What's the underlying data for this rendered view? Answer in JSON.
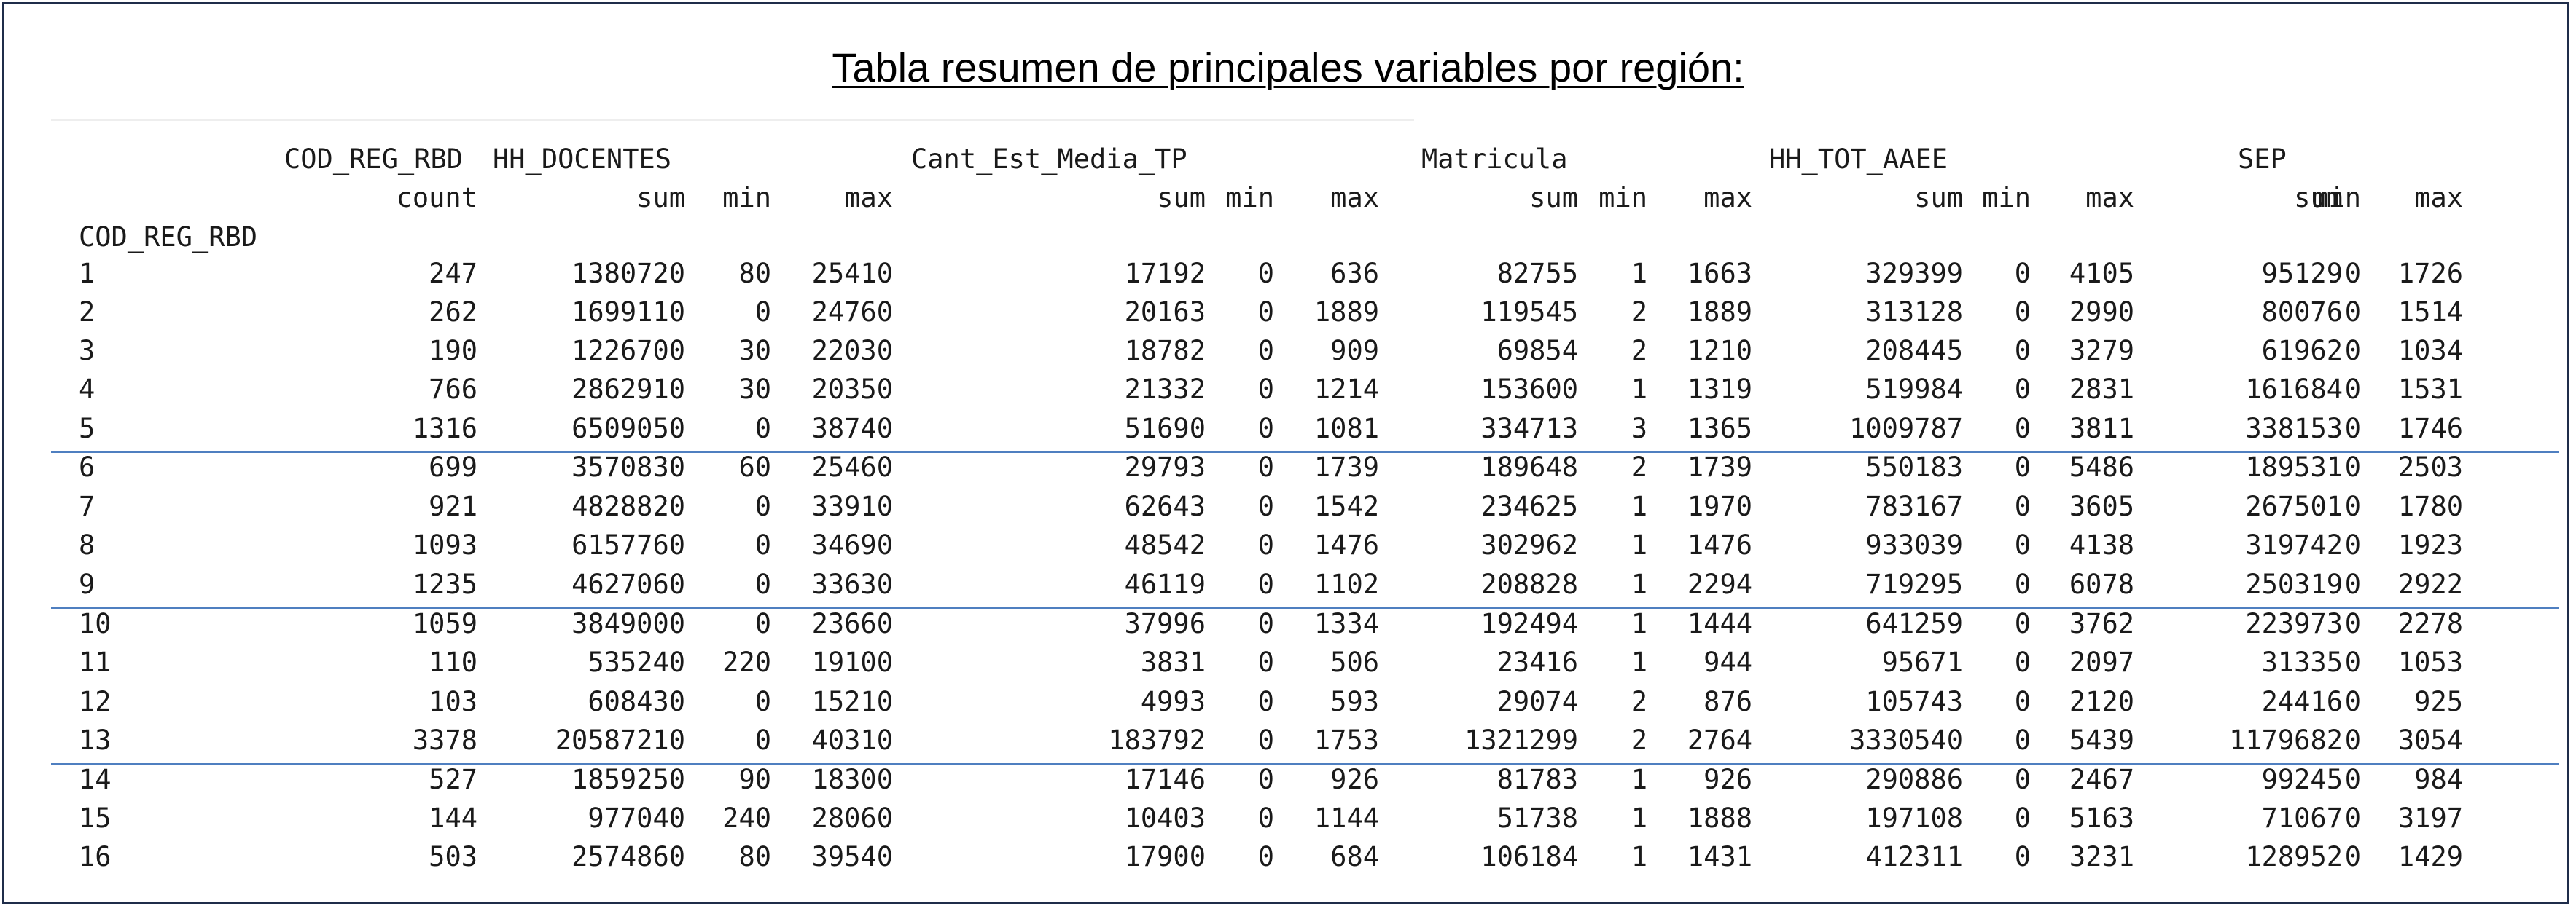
{
  "title": "Tabla resumen de principales variables por región:",
  "header_groups": [
    "COD_REG_RBD",
    "HH_DOCENTES",
    "Cant_Est_Media_TP",
    "Matricula",
    "HH_TOT_AAEE",
    "SEP"
  ],
  "sub_headers": [
    "count",
    "sum",
    "min",
    "max",
    "sum",
    "min",
    "max",
    "sum",
    "min",
    "max",
    "sum",
    "min",
    "max",
    "sum",
    "min",
    "max"
  ],
  "index_label": "COD_REG_RBD",
  "rows": [
    [
      "1",
      "247",
      "1380720",
      "80",
      "25410",
      "17192",
      "0",
      "636",
      "82755",
      "1",
      "1663",
      "329399",
      "0",
      "4105",
      "95129",
      "0",
      "1726"
    ],
    [
      "2",
      "262",
      "1699110",
      "0",
      "24760",
      "20163",
      "0",
      "1889",
      "119545",
      "2",
      "1889",
      "313128",
      "0",
      "2990",
      "80076",
      "0",
      "1514"
    ],
    [
      "3",
      "190",
      "1226700",
      "30",
      "22030",
      "18782",
      "0",
      "909",
      "69854",
      "2",
      "1210",
      "208445",
      "0",
      "3279",
      "61962",
      "0",
      "1034"
    ],
    [
      "4",
      "766",
      "2862910",
      "30",
      "20350",
      "21332",
      "0",
      "1214",
      "153600",
      "1",
      "1319",
      "519984",
      "0",
      "2831",
      "161684",
      "0",
      "1531"
    ],
    [
      "5",
      "1316",
      "6509050",
      "0",
      "38740",
      "51690",
      "0",
      "1081",
      "334713",
      "3",
      "1365",
      "1009787",
      "0",
      "3811",
      "338153",
      "0",
      "1746"
    ],
    [
      "6",
      "699",
      "3570830",
      "60",
      "25460",
      "29793",
      "0",
      "1739",
      "189648",
      "2",
      "1739",
      "550183",
      "0",
      "5486",
      "189531",
      "0",
      "2503"
    ],
    [
      "7",
      "921",
      "4828820",
      "0",
      "33910",
      "62643",
      "0",
      "1542",
      "234625",
      "1",
      "1970",
      "783167",
      "0",
      "3605",
      "267501",
      "0",
      "1780"
    ],
    [
      "8",
      "1093",
      "6157760",
      "0",
      "34690",
      "48542",
      "0",
      "1476",
      "302962",
      "1",
      "1476",
      "933039",
      "0",
      "4138",
      "319742",
      "0",
      "1923"
    ],
    [
      "9",
      "1235",
      "4627060",
      "0",
      "33630",
      "46119",
      "0",
      "1102",
      "208828",
      "1",
      "2294",
      "719295",
      "0",
      "6078",
      "250319",
      "0",
      "2922"
    ],
    [
      "10",
      "1059",
      "3849000",
      "0",
      "23660",
      "37996",
      "0",
      "1334",
      "192494",
      "1",
      "1444",
      "641259",
      "0",
      "3762",
      "223973",
      "0",
      "2278"
    ],
    [
      "11",
      "110",
      "535240",
      "220",
      "19100",
      "3831",
      "0",
      "506",
      "23416",
      "1",
      "944",
      "95671",
      "0",
      "2097",
      "31335",
      "0",
      "1053"
    ],
    [
      "12",
      "103",
      "608430",
      "0",
      "15210",
      "4993",
      "0",
      "593",
      "29074",
      "2",
      "876",
      "105743",
      "0",
      "2120",
      "24416",
      "0",
      "925"
    ],
    [
      "13",
      "3378",
      "20587210",
      "0",
      "40310",
      "183792",
      "0",
      "1753",
      "1321299",
      "2",
      "2764",
      "3330540",
      "0",
      "5439",
      "1179682",
      "0",
      "3054"
    ],
    [
      "14",
      "527",
      "1859250",
      "90",
      "18300",
      "17146",
      "0",
      "926",
      "81783",
      "1",
      "926",
      "290886",
      "0",
      "2467",
      "99245",
      "0",
      "984"
    ],
    [
      "15",
      "144",
      "977040",
      "240",
      "28060",
      "10403",
      "0",
      "1144",
      "51738",
      "1",
      "1888",
      "197108",
      "0",
      "5163",
      "71067",
      "0",
      "3197"
    ],
    [
      "16",
      "503",
      "2574860",
      "80",
      "39540",
      "17900",
      "0",
      "684",
      "106184",
      "1",
      "1431",
      "412311",
      "0",
      "3231",
      "128952",
      "0",
      "1429"
    ]
  ],
  "colors": {
    "border": "#1f2d4a",
    "separator": "#4f7fc0",
    "text": "#1a1a1a"
  }
}
